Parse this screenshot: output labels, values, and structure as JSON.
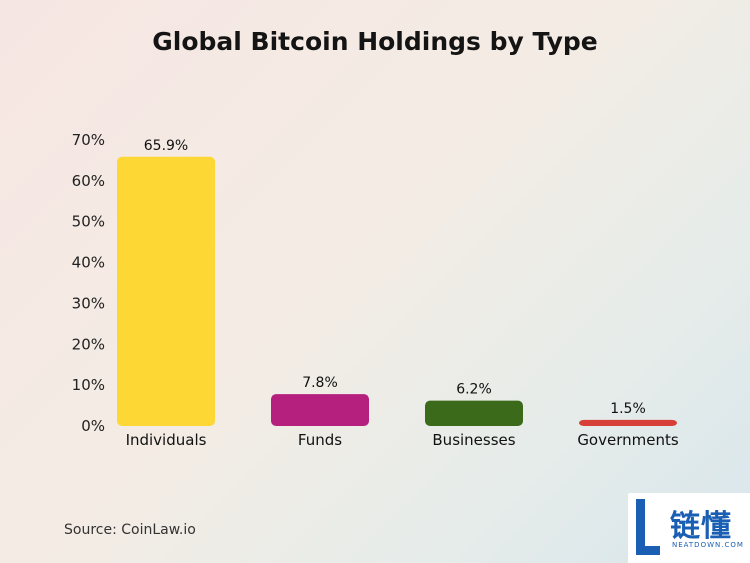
{
  "chart_data": {
    "type": "bar",
    "title": "Global Bitcoin Holdings by Type",
    "categories": [
      "Individuals",
      "Funds",
      "Businesses",
      "Governments"
    ],
    "values": [
      65.9,
      7.8,
      6.2,
      1.5
    ],
    "data_labels": [
      "65.9%",
      "7.8%",
      "6.2%",
      "1.5%"
    ],
    "colors": [
      "#fdd835",
      "#b5207f",
      "#3b6a1a",
      "#d64039"
    ],
    "yticks": [
      "0%",
      "10%",
      "20%",
      "30%",
      "40%",
      "50%",
      "60%",
      "70%"
    ],
    "ylim": [
      0,
      70
    ],
    "xlabel": "",
    "ylabel": "",
    "grid": false,
    "legend": "none"
  },
  "source": "Source: CoinLaw.io",
  "watermark": {
    "text": "链懂",
    "subtext": "NEATDOWN.COM",
    "color": "#1a5fb4"
  }
}
